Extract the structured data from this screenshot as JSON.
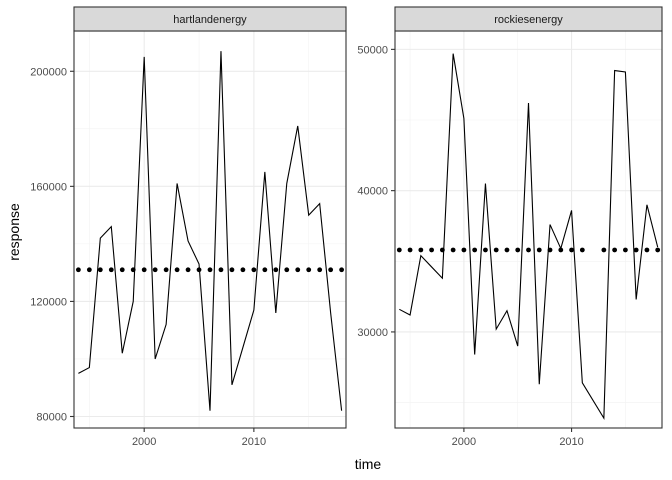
{
  "chart_data": {
    "type": "line",
    "xlabel": "time",
    "ylabel": "response",
    "grid": true,
    "panels": [
      {
        "name": "hartlandenergy",
        "xlim": [
          1993.6,
          2018.4
        ],
        "ylim": [
          76000,
          214000
        ],
        "x_ticks": [
          2000,
          2010
        ],
        "x_tick_labels": [
          "2000",
          "2010"
        ],
        "y_ticks": [
          80000,
          120000,
          160000,
          200000
        ],
        "y_tick_labels": [
          "80000",
          "120000",
          "160000",
          "200000"
        ],
        "series": [
          {
            "style": "line",
            "x": [
              1994,
              1995,
              1996,
              1997,
              1998,
              1999,
              2000,
              2001,
              2002,
              2003,
              2004,
              2005,
              2006,
              2007,
              2008,
              2009,
              2010,
              2011,
              2012,
              2013,
              2014,
              2015,
              2016,
              2017,
              2018
            ],
            "y": [
              95000,
              97000,
              142000,
              146000,
              102000,
              120000,
              205000,
              100000,
              112000,
              161000,
              141000,
              133000,
              82000,
              207000,
              91000,
              104000,
              117000,
              165000,
              116000,
              161000,
              181000,
              150000,
              154000,
              116000,
              82000
            ]
          },
          {
            "style": "points",
            "x": [
              1994,
              1995,
              1996,
              1997,
              1998,
              1999,
              2000,
              2001,
              2002,
              2003,
              2004,
              2005,
              2006,
              2007,
              2008,
              2009,
              2010,
              2011,
              2012,
              2013,
              2014,
              2015,
              2016,
              2017,
              2018
            ],
            "y": [
              131000,
              131000,
              131000,
              131000,
              131000,
              131000,
              131000,
              131000,
              131000,
              131000,
              131000,
              131000,
              131000,
              131000,
              131000,
              131000,
              131000,
              131000,
              131000,
              131000,
              131000,
              131000,
              131000,
              131000,
              131000
            ]
          }
        ]
      },
      {
        "name": "rockiesenergy",
        "xlim": [
          1993.6,
          2018.4
        ],
        "ylim": [
          23200,
          51300
        ],
        "x_ticks": [
          2000,
          2010
        ],
        "x_tick_labels": [
          "2000",
          "2010"
        ],
        "y_ticks": [
          30000,
          40000,
          50000
        ],
        "y_tick_labels": [
          "30000",
          "40000",
          "50000"
        ],
        "series": [
          {
            "style": "line",
            "x": [
              1994,
              1995,
              1996,
              1997,
              1998,
              1999,
              2000,
              2001,
              2002,
              2003,
              2004,
              2005,
              2006,
              2007,
              2008,
              2009,
              2010,
              2011,
              2013,
              2014,
              2015,
              2016,
              2017,
              2018
            ],
            "y": [
              31600,
              31200,
              35400,
              34600,
              33800,
              49700,
              45100,
              28400,
              40500,
              30200,
              31500,
              29000,
              46200,
              26300,
              37600,
              35900,
              38600,
              26400,
              23900,
              48500,
              48400,
              32300,
              39000,
              36000
            ]
          },
          {
            "style": "points",
            "x": [
              1994,
              1995,
              1996,
              1997,
              1998,
              1999,
              2000,
              2001,
              2002,
              2003,
              2004,
              2005,
              2006,
              2007,
              2008,
              2009,
              2010,
              2011,
              2013,
              2014,
              2015,
              2016,
              2017,
              2018
            ],
            "y": [
              35800,
              35800,
              35800,
              35800,
              35800,
              35800,
              35800,
              35800,
              35800,
              35800,
              35800,
              35800,
              35800,
              35800,
              35800,
              35800,
              35800,
              35800,
              35800,
              35800,
              35800,
              35800,
              35800,
              35800
            ]
          }
        ]
      }
    ]
  }
}
